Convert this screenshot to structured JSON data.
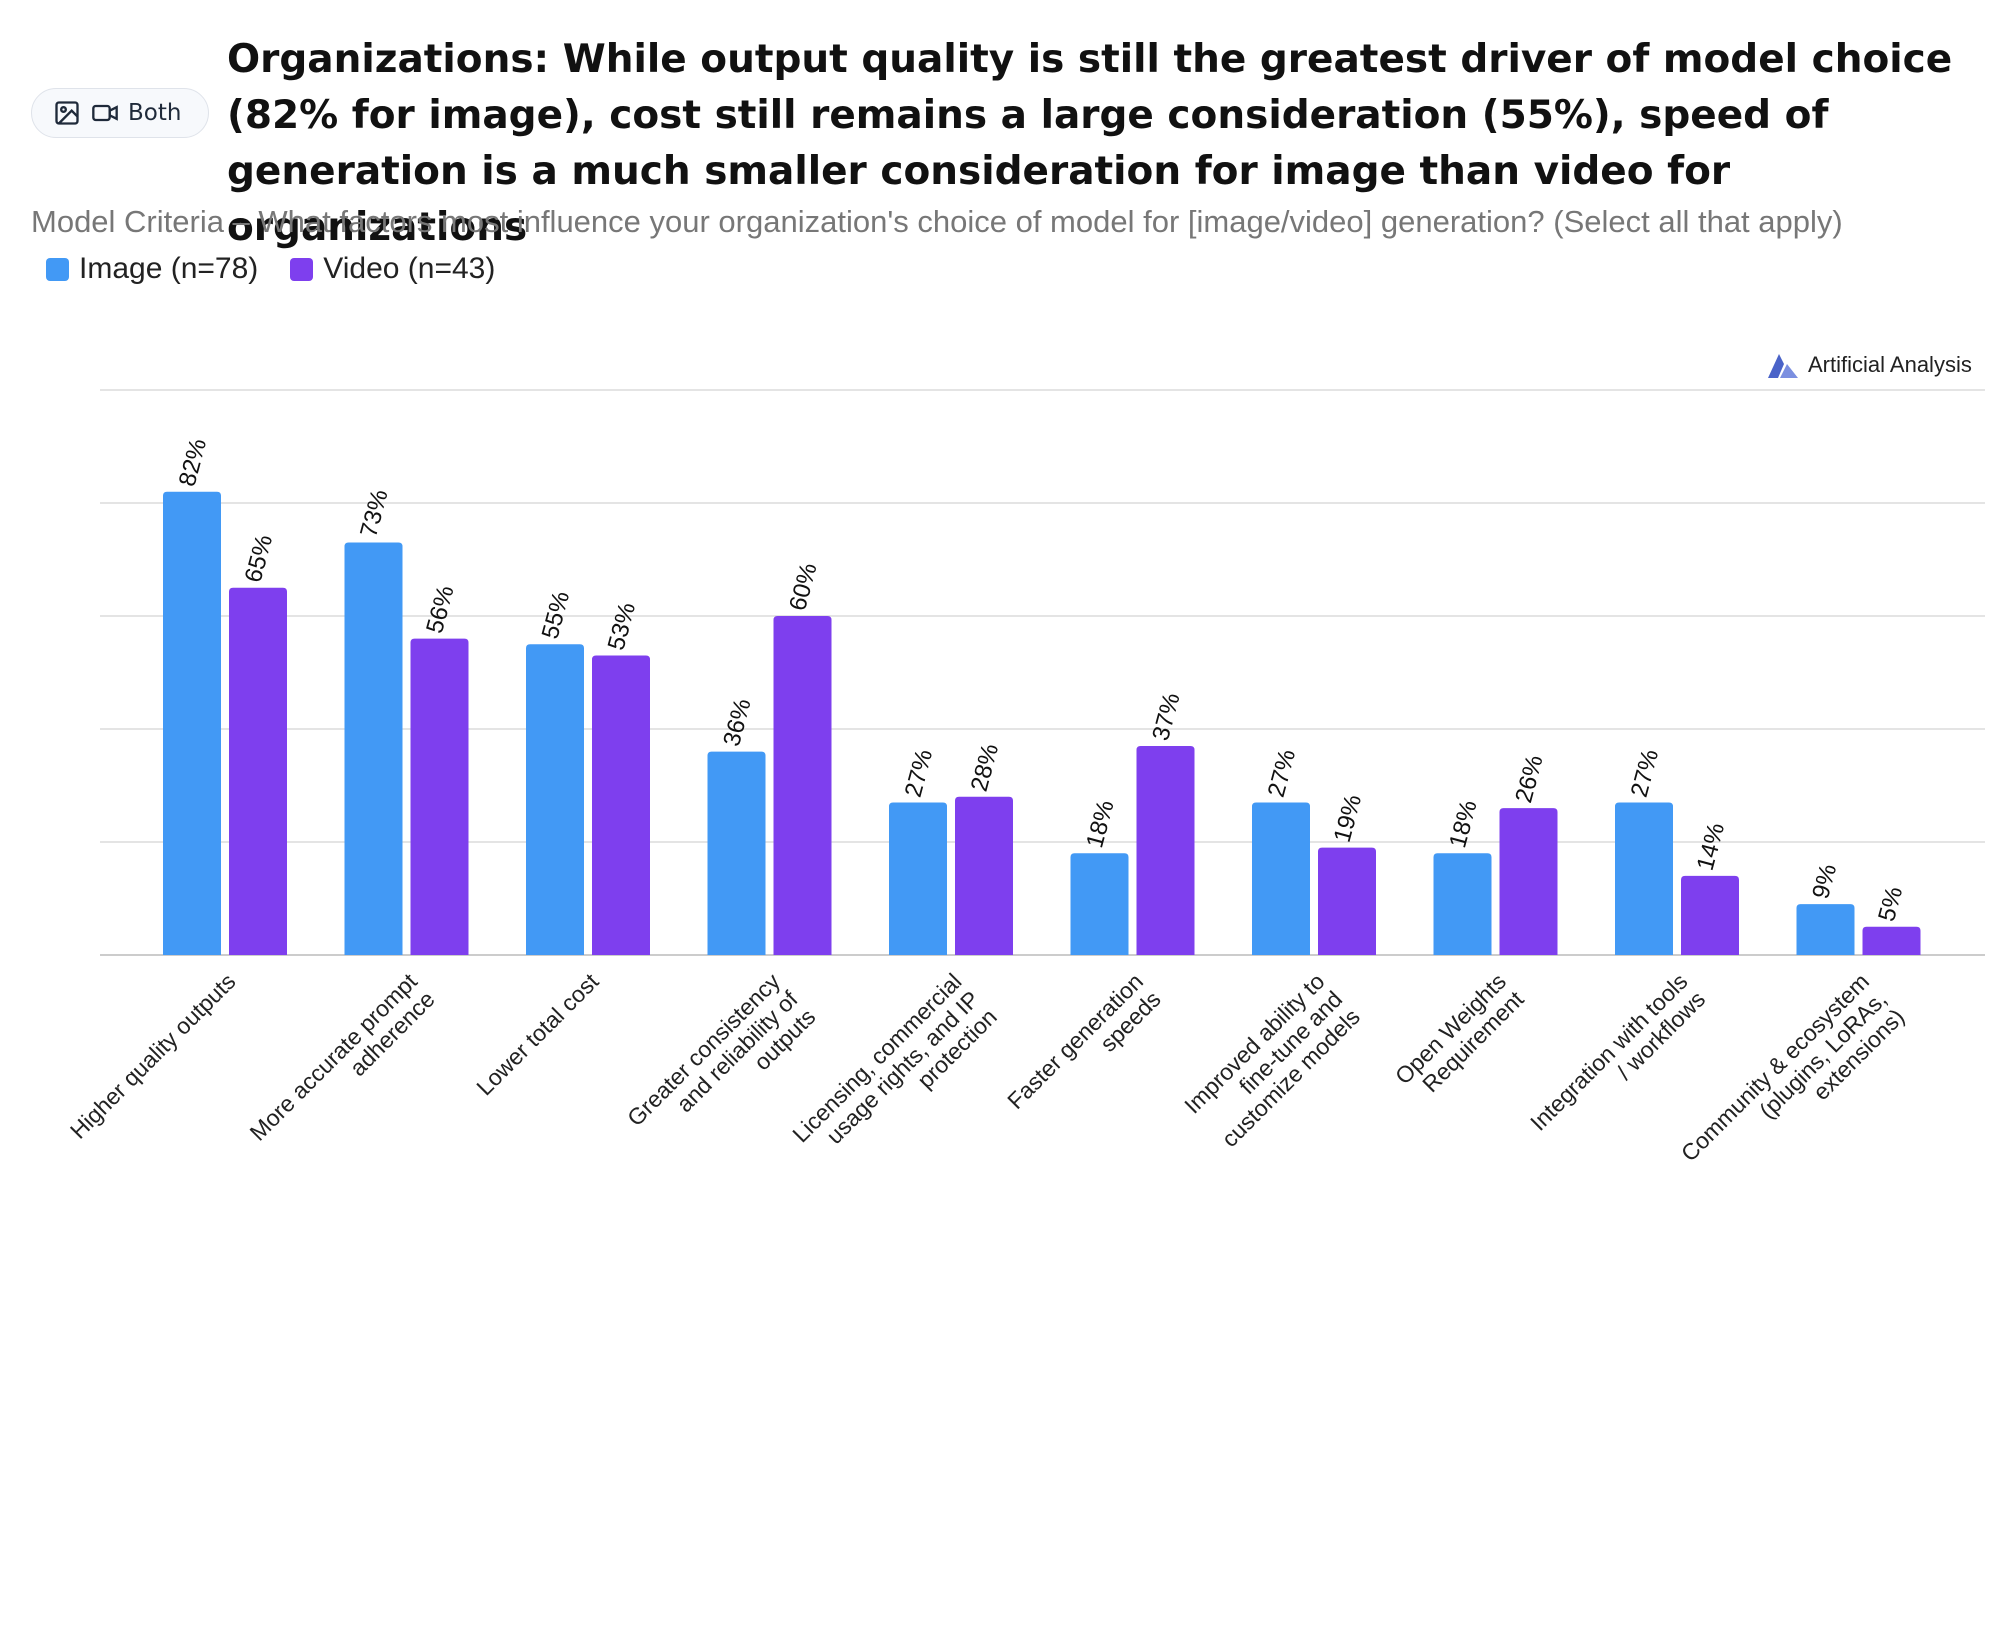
{
  "view_toggle": {
    "label": "Both",
    "image_icon": "image-icon",
    "video_icon": "video-camera-icon"
  },
  "headline": "Organizations: While output quality is still the greatest driver of model choice (82% for image), cost still remains a large consideration (55%), speed of generation is a much smaller consideration for image than video for organizations",
  "subtitle": "Model Criteria – What factors most influence your organization's choice of model for [image/video] generation? (Select all that apply)",
  "legend": [
    {
      "label": "Image (n=78)",
      "color": "#4299f5"
    },
    {
      "label": "Video (n=43)",
      "color": "#7e3fee"
    }
  ],
  "branding": {
    "name": "Artificial Analysis",
    "icon": "artificial-analysis-logo-icon"
  },
  "chart_data": {
    "type": "bar",
    "title": "",
    "xlabel": "",
    "ylabel": "",
    "ylim": [
      0,
      100
    ],
    "grid": true,
    "legend_position": "top-left",
    "value_suffix": "%",
    "categories": [
      "Higher quality outputs",
      "More accurate prompt adherence",
      "Lower total cost",
      "Greater consistency and reliability of outputs",
      "Licensing, commercial usage rights, and IP protection",
      "Faster generation speeds",
      "Improved ability to fine-tune and customize models",
      "Open Weights Requirement",
      "Integration with tools / workflows",
      "Community & ecosystem (plugins, LoRAs, extensions)"
    ],
    "category_lines": [
      [
        "Higher quality outputs"
      ],
      [
        "More accurate prompt",
        "adherence"
      ],
      [
        "Lower total cost"
      ],
      [
        "Greater consistency",
        "and reliability of",
        "outputs"
      ],
      [
        "Licensing, commercial",
        "usage rights, and IP",
        "protection"
      ],
      [
        "Faster generation",
        "speeds"
      ],
      [
        "Improved ability to",
        "fine-tune and",
        "customize models"
      ],
      [
        "Open Weights",
        "Requirement"
      ],
      [
        "Integration with tools",
        "/ workflows"
      ],
      [
        "Community & ecosystem",
        "(plugins, LoRAs,",
        "extensions)"
      ]
    ],
    "series": [
      {
        "name": "Image (n=78)",
        "color": "#4299f5",
        "values": [
          82,
          73,
          55,
          36,
          27,
          18,
          27,
          18,
          27,
          9
        ]
      },
      {
        "name": "Video (n=43)",
        "color": "#7e3fee",
        "values": [
          65,
          56,
          53,
          60,
          28,
          37,
          19,
          26,
          14,
          5
        ]
      }
    ]
  }
}
